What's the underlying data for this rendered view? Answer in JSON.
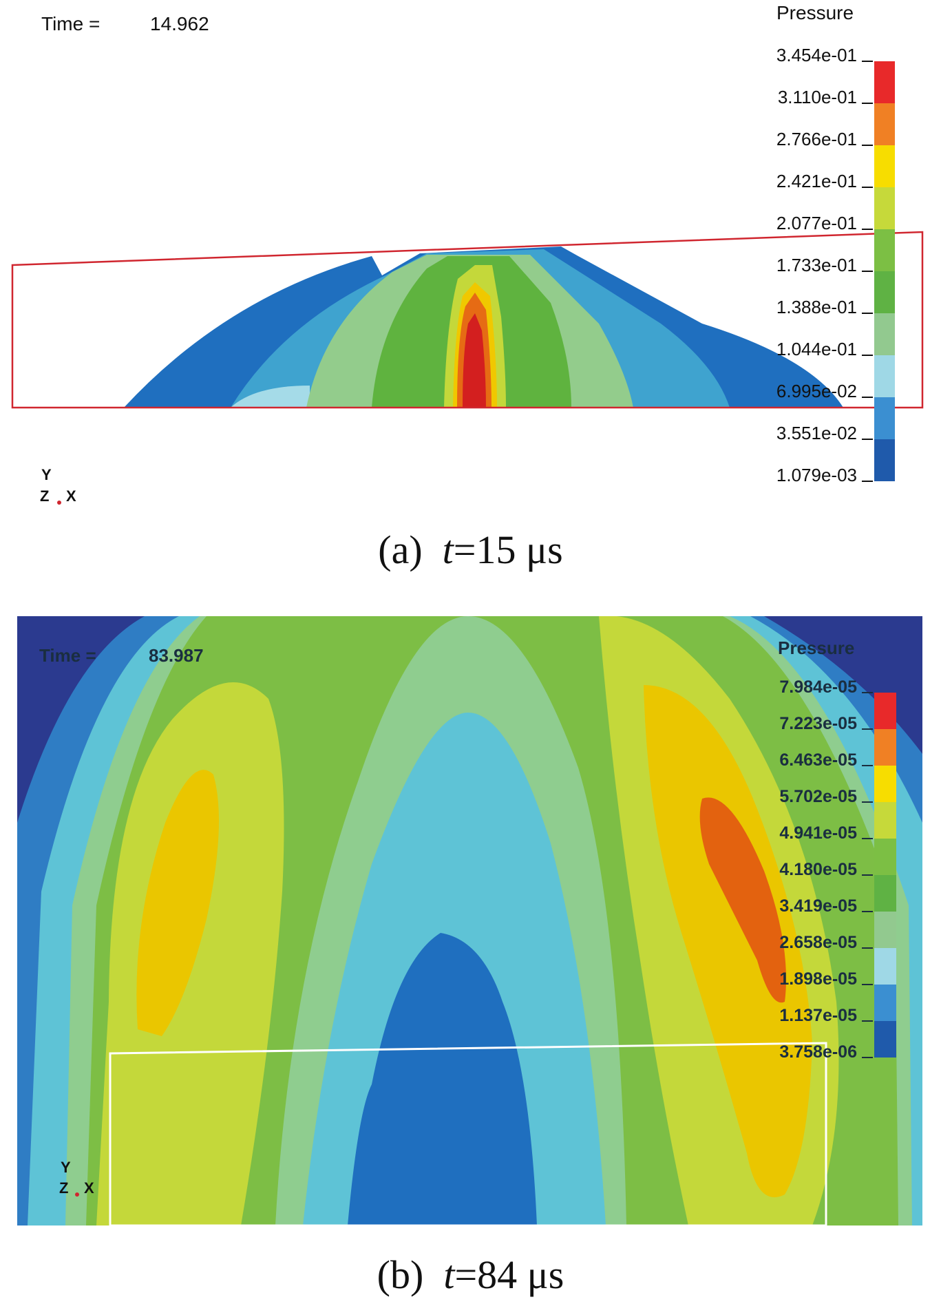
{
  "panels": [
    {
      "id": "a",
      "time_label": "Time =",
      "time_value": "14.962",
      "legend_title": "Pressure",
      "legend_values": [
        "3.454e-01",
        "3.110e-01",
        "2.766e-01",
        "2.421e-01",
        "2.077e-01",
        "1.733e-01",
        "1.388e-01",
        "1.044e-01",
        "6.995e-02",
        "3.551e-02",
        "1.079e-03"
      ],
      "axis_labels": {
        "y": "Y",
        "z": "Z",
        "x": "X"
      },
      "caption": {
        "prefix": "(a)",
        "var": "t",
        "eq": "=15 μs"
      }
    },
    {
      "id": "b",
      "time_label": "Time =",
      "time_value": "83.987",
      "legend_title": "Pressure",
      "legend_values": [
        "7.984e-05",
        "7.223e-05",
        "6.463e-05",
        "5.702e-05",
        "4.941e-05",
        "4.180e-05",
        "3.419e-05",
        "2.658e-05",
        "1.898e-05",
        "1.137e-05",
        "3.758e-06"
      ],
      "axis_labels": {
        "y": "Y",
        "z": "Z",
        "x": "X"
      },
      "caption": {
        "prefix": "(b)",
        "var": "t",
        "eq": "=84 μs"
      }
    }
  ],
  "colorbar": [
    "#e8292a",
    "#f08024",
    "#f7dd00",
    "#c6d93a",
    "#7cbf44",
    "#5fb244",
    "#92c98f",
    "#9fd8e6",
    "#3b8fd1",
    "#1f5aab"
  ],
  "colors": {
    "domain_outline_a": "#d0262f",
    "domain_outline_b": "#ffffff",
    "background_b": "#2b3a8f",
    "contour_dark_blue": "#1f6fbf",
    "contour_mid_blue": "#3a9bd5",
    "contour_cyan": "#5ec3d6",
    "contour_light_green": "#8fcd8f",
    "contour_green": "#7dbe45",
    "contour_yellow_green": "#c4d83a",
    "contour_yellow": "#eac600",
    "contour_orange": "#e3620f",
    "contour_red": "#d8201f"
  }
}
